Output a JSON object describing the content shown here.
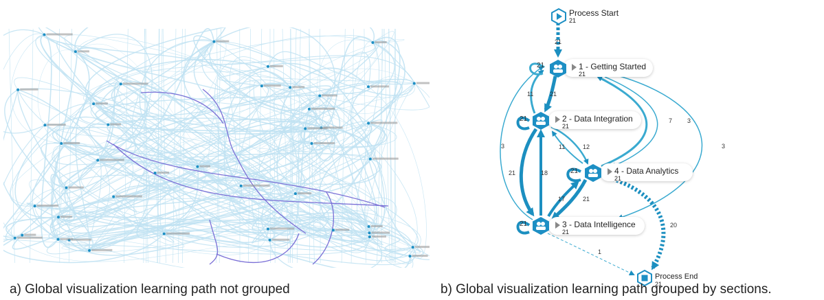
{
  "captions": {
    "a": "a) Global visualization learning path not grouped",
    "b": "b) Global visualization learning path grouped by sections."
  },
  "colors": {
    "edge": "#3aaad0",
    "edge_dark": "#1c8fc0",
    "node": "#1d8fc4",
    "faint": "#bfe2f2",
    "purple": "#7a6fd6"
  },
  "graph": {
    "process_start": {
      "title": "Process Start",
      "count": "21"
    },
    "process_end": {
      "title": "Process End",
      "count": "21"
    },
    "sections": [
      {
        "id": "s1",
        "title": "1 - Getting Started",
        "count": "21",
        "self_loop": "21",
        "icon": "group-icon"
      },
      {
        "id": "s2",
        "title": "2 - Data Integration",
        "count": "21",
        "self_loop": "21",
        "icon": "group-icon"
      },
      {
        "id": "s4",
        "title": "4 - Data Analytics",
        "count": "21",
        "self_loop": "21",
        "icon": "group-icon"
      },
      {
        "id": "s3",
        "title": "3 - Data Intelligence",
        "count": "21",
        "self_loop": "21",
        "icon": "group-icon"
      }
    ],
    "edge_labels": {
      "start_s1": "21",
      "s2_s1": "11",
      "s1_s2": "21",
      "s4_s1_a": "7",
      "s4_s1_b": "3",
      "s3_s1": "3",
      "s1_s3": "3",
      "s2_s4": "11",
      "s4_s2": "12",
      "s2_s3": "21",
      "s3_s2": "18",
      "s3_s4": "17",
      "s4_s3": "21",
      "s4_end": "20",
      "s3_end": "1"
    }
  }
}
